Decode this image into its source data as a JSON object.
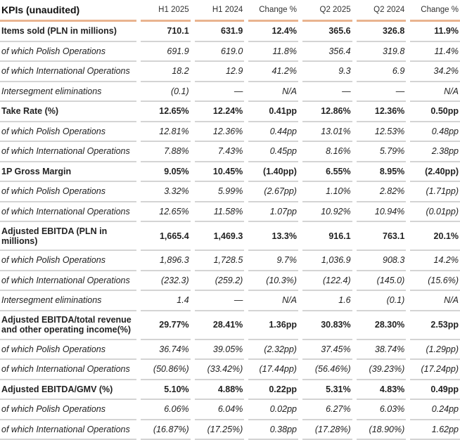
{
  "table": {
    "title": "KPIs (unaudited)",
    "columns": [
      "H1 2025",
      "H1 2024",
      "Change %",
      "Q2 2025",
      "Q2 2024",
      "Change %"
    ],
    "rows": [
      {
        "label": "Items sold (PLN in millions)",
        "bold": true,
        "values": [
          "710.1",
          "631.9",
          "12.4%",
          "365.6",
          "326.8",
          "11.9%"
        ]
      },
      {
        "label": "of which Polish Operations",
        "values": [
          "691.9",
          "619.0",
          "11.8%",
          "356.4",
          "319.8",
          "11.4%"
        ]
      },
      {
        "label": "of which International Operations",
        "values": [
          "18.2",
          "12.9",
          "41.2%",
          "9.3",
          "6.9",
          "34.2%"
        ]
      },
      {
        "label": "Intersegment eliminations",
        "values": [
          "(0.1)",
          "—",
          "N/A",
          "—",
          "—",
          "N/A"
        ]
      },
      {
        "label": "Take Rate (%)",
        "bold": true,
        "values": [
          "12.65%",
          "12.24%",
          "0.41pp",
          "12.86%",
          "12.36%",
          "0.50pp"
        ]
      },
      {
        "label": "of which Polish Operations",
        "values": [
          "12.81%",
          "12.36%",
          "0.44pp",
          "13.01%",
          "12.53%",
          "0.48pp"
        ]
      },
      {
        "label": "of which International Operations",
        "values": [
          "7.88%",
          "7.43%",
          "0.45pp",
          "8.16%",
          "5.79%",
          "2.38pp"
        ]
      },
      {
        "label": "1P Gross Margin",
        "bold": true,
        "values": [
          "9.05%",
          "10.45%",
          "(1.40pp)",
          "6.55%",
          "8.95%",
          "(2.40pp)"
        ]
      },
      {
        "label": "of which Polish Operations",
        "values": [
          "3.32%",
          "5.99%",
          "(2.67pp)",
          "1.10%",
          "2.82%",
          "(1.71pp)"
        ]
      },
      {
        "label": "of which International Operations",
        "values": [
          "12.65%",
          "11.58%",
          "1.07pp",
          "10.92%",
          "10.94%",
          "(0.01pp)"
        ]
      },
      {
        "label": "Adjusted EBITDA (PLN in millions)",
        "bold": true,
        "tall": true,
        "values": [
          "1,665.4",
          "1,469.3",
          "13.3%",
          "916.1",
          "763.1",
          "20.1%"
        ]
      },
      {
        "label": "of which Polish Operations",
        "values": [
          "1,896.3",
          "1,728.5",
          "9.7%",
          "1,036.9",
          "908.3",
          "14.2%"
        ]
      },
      {
        "label": "of which International Operations",
        "values": [
          "(232.3)",
          "(259.2)",
          "(10.3%)",
          "(122.4)",
          "(145.0)",
          "(15.6%)"
        ]
      },
      {
        "label": "Intersegment eliminations",
        "values": [
          "1.4",
          "—",
          "N/A",
          "1.6",
          "(0.1)",
          "N/A"
        ]
      },
      {
        "label": "Adjusted EBITDA/total revenue and other operating income(%)",
        "bold": true,
        "tall": true,
        "values": [
          "29.77%",
          "28.41%",
          "1.36pp",
          "30.83%",
          "28.30%",
          "2.53pp"
        ]
      },
      {
        "label": "of which Polish Operations",
        "values": [
          "36.74%",
          "39.05%",
          "(2.32pp)",
          "37.45%",
          "38.74%",
          "(1.29pp)"
        ]
      },
      {
        "label": "of which International Operations",
        "values": [
          "(50.86%)",
          "(33.42%)",
          "(17.44pp)",
          "(56.46%)",
          "(39.23%)",
          "(17.24pp)"
        ]
      },
      {
        "label": "Adjusted EBITDA/GMV (%)",
        "bold": true,
        "values": [
          "5.10%",
          "4.88%",
          "0.22pp",
          "5.31%",
          "4.83%",
          "0.49pp"
        ]
      },
      {
        "label": "of which Polish Operations",
        "values": [
          "6.06%",
          "6.04%",
          "0.02pp",
          "6.27%",
          "6.03%",
          "0.24pp"
        ]
      },
      {
        "label": "of which International Operations",
        "values": [
          "(16.87%)",
          "(17.25%)",
          "0.38pp",
          "(17.28%)",
          "(18.90%)",
          "1.62pp"
        ]
      }
    ]
  },
  "colors": {
    "header_rule": "#e9b48f",
    "row_rule": "#d4d4d4"
  }
}
